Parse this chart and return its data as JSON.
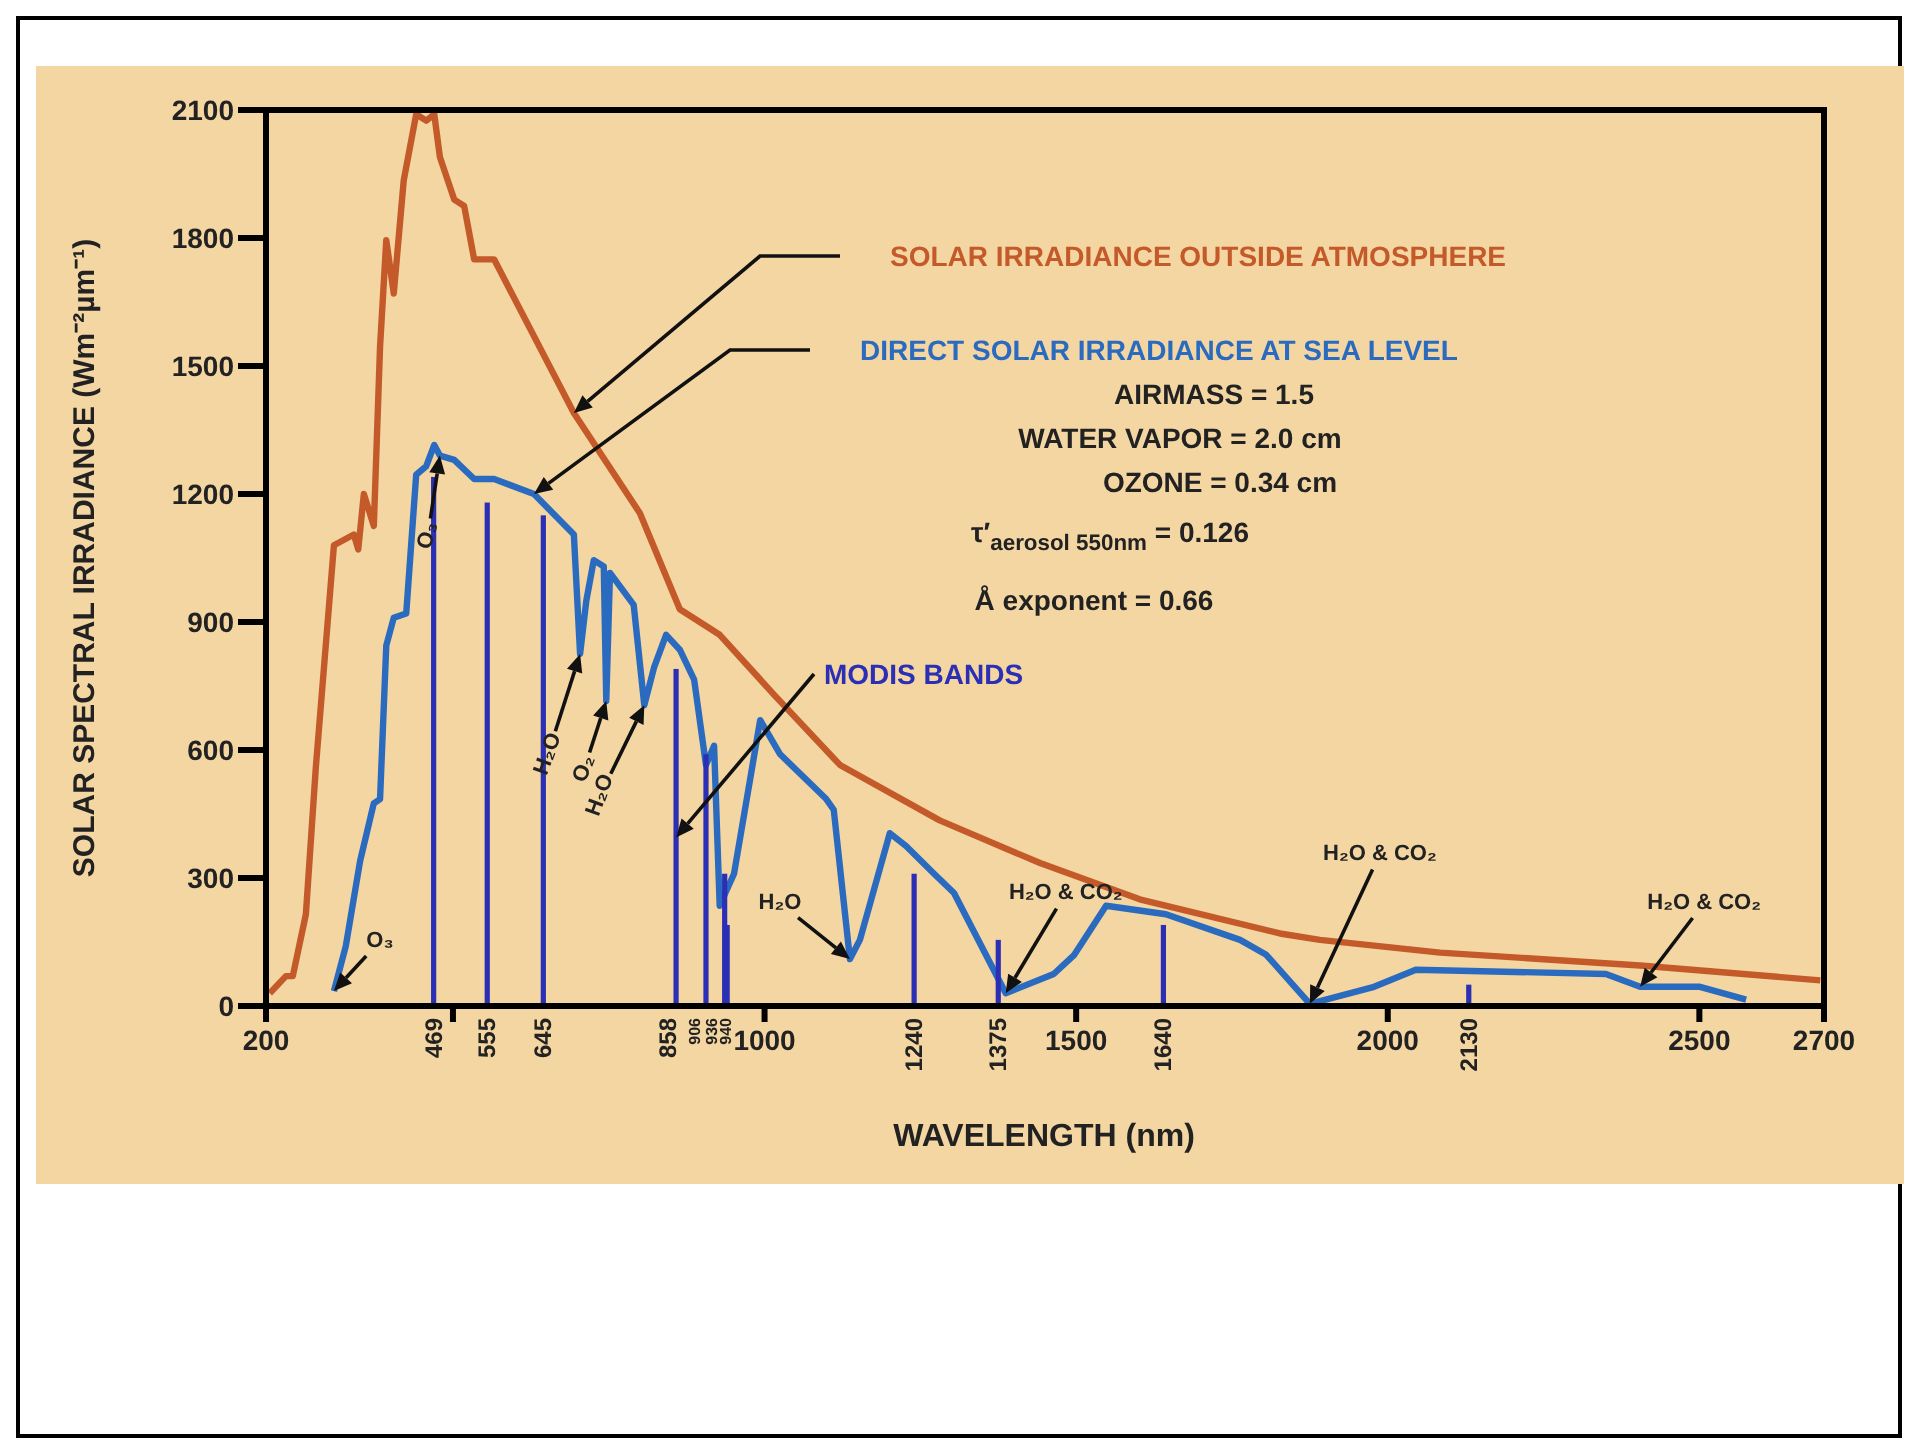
{
  "chart_data": {
    "type": "line",
    "xlabel": "WAVELENGTH (nm)",
    "ylabel": "SOLAR SPECTRAL IRRADIANCE (Wm⁻²µm⁻¹)",
    "xlim": [
      200,
      2700
    ],
    "xticks": [
      200,
      {
        "value": 500,
        "label": null
      },
      1000,
      1500,
      2000,
      2500,
      2700
    ],
    "ylim": [
      0,
      2100
    ],
    "yticks": [
      0,
      300,
      600,
      900,
      1200,
      1500,
      1800,
      2100
    ],
    "grid": false,
    "legend": false,
    "series": [
      {
        "name": "SOLAR IRRADIANCE OUTSIDE ATMOSPHERE",
        "color": "#c45a2a",
        "x": [
          206,
          232,
          243,
          264,
          280,
          309,
          341,
          348,
          357,
          373,
          383,
          393,
          405,
          421,
          441,
          457,
          470,
          479,
          502,
          518,
          534,
          566,
          694,
          800,
          864,
          928,
          1015,
          1121,
          1281,
          1442,
          1602,
          1827,
          1891,
          2084,
          2405,
          2694
        ],
        "values": [
          30,
          70,
          70,
          215,
          560,
          1080,
          1105,
          1070,
          1200,
          1125,
          1545,
          1795,
          1670,
          1935,
          2090,
          2075,
          2090,
          1990,
          1890,
          1875,
          1750,
          1750,
          1390,
          1155,
          930,
          870,
          730,
          565,
          435,
          335,
          250,
          170,
          155,
          125,
          95,
          60
        ]
      },
      {
        "name": "DIRECT SOLAR IRRADIANCE AT SEA LEVEL",
        "color": "#2a6bbf",
        "x": [
          309,
          328,
          351,
          373,
          383,
          393,
          405,
          425,
          441,
          457,
          470,
          479,
          502,
          534,
          566,
          630,
          694,
          704,
          714,
          726,
          742,
          746,
          752,
          790,
          807,
          823,
          842,
          864,
          887,
          906,
          919,
          928,
          951,
          993,
          1025,
          1099,
          1111,
          1137,
          1153,
          1201,
          1227,
          1272,
          1304,
          1387,
          1464,
          1497,
          1548,
          1644,
          1763,
          1805,
          1875,
          1978,
          2045,
          2350,
          2405,
          2501,
          2575
        ],
        "values": [
          35,
          140,
          340,
          475,
          485,
          845,
          910,
          920,
          1245,
          1265,
          1315,
          1290,
          1280,
          1235,
          1235,
          1200,
          1105,
          825,
          950,
          1045,
          1030,
          715,
          1015,
          940,
          705,
          795,
          870,
          835,
          765,
          565,
          610,
          235,
          310,
          670,
          590,
          485,
          460,
          110,
          155,
          405,
          375,
          310,
          265,
          30,
          75,
          120,
          235,
          215,
          155,
          120,
          5,
          45,
          85,
          75,
          45,
          45,
          15
        ]
      },
      {
        "name": "MODIS BANDS",
        "type": "bar",
        "color": "#2b2fb5",
        "x": [
          469,
          555,
          645,
          858,
          906,
          936,
          940,
          1240,
          1375,
          1640,
          2130
        ],
        "values": [
          1240,
          1180,
          1150,
          790,
          590,
          310,
          190,
          310,
          155,
          190,
          50
        ]
      }
    ],
    "annotations": [
      {
        "text": "O₃",
        "x": 309,
        "y": 35
      },
      {
        "text": "O₃",
        "x": 479,
        "y": 1290
      },
      {
        "text": "H₂O",
        "x": 704,
        "y": 825
      },
      {
        "text": "O₂",
        "x": 746,
        "y": 715
      },
      {
        "text": "H₂O",
        "x": 807,
        "y": 705
      },
      {
        "text": "H₂O",
        "x": 1137,
        "y": 110
      },
      {
        "text": "H₂O & CO₂",
        "x": 1387,
        "y": 30
      },
      {
        "text": "H₂O & CO₂",
        "x": 1875,
        "y": 5
      },
      {
        "text": "H₂O & CO₂",
        "x": 2405,
        "y": 45
      },
      {
        "text": "469",
        "x": 469,
        "y": 0
      },
      {
        "text": "555",
        "x": 555,
        "y": 0
      },
      {
        "text": "645",
        "x": 645,
        "y": 0
      },
      {
        "text": "858",
        "x": 858,
        "y": 0
      },
      {
        "text": "906",
        "x": 906,
        "y": 0
      },
      {
        "text": "936",
        "x": 936,
        "y": 0
      },
      {
        "text": "940",
        "x": 940,
        "y": 0
      },
      {
        "text": "1240",
        "x": 1240,
        "y": 0
      },
      {
        "text": "1375",
        "x": 1375,
        "y": 0
      },
      {
        "text": "1640",
        "x": 1640,
        "y": 0
      },
      {
        "text": "2130",
        "x": 2130,
        "y": 0
      },
      "AIRMASS = 1.5",
      "WATER VAPOR = 2.0 cm",
      "OZONE = 0.34 cm",
      "τ′$_{aerosol 550nm}$ = 0.126",
      "Å exponent = 0.66"
    ]
  }
}
